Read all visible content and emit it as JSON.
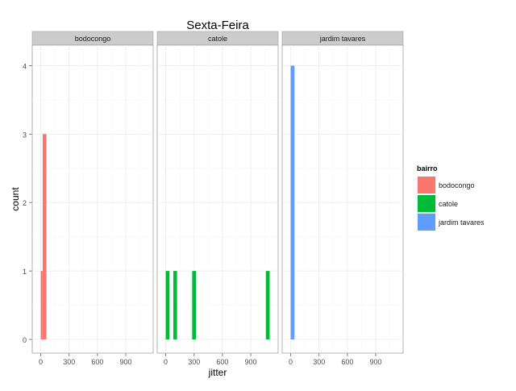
{
  "chart_data": {
    "type": "bar",
    "title": "Sexta-Feira",
    "xlabel": "jitter",
    "ylabel": "count",
    "xlim": [
      -90,
      1190
    ],
    "ylim": [
      -0.2,
      4.3
    ],
    "x_ticks": [
      "0",
      "300",
      "600",
      "900"
    ],
    "x_tick_values": [
      0,
      300,
      600,
      900
    ],
    "y_ticks": [
      "0",
      "1",
      "2",
      "3",
      "4"
    ],
    "y_tick_values": [
      0,
      1,
      2,
      3,
      4
    ],
    "bin_width": 40,
    "grid": true,
    "legend": {
      "title": "bairro",
      "position": "right",
      "entries": [
        "bodocongo",
        "catole",
        "jardim tavares"
      ]
    },
    "facets": [
      {
        "name": "bodocongo",
        "color": "#F8766D",
        "bars": [
          {
            "x_start": 0,
            "x_end": 20,
            "count": 1
          },
          {
            "x_start": 20,
            "x_end": 60,
            "count": 3
          }
        ]
      },
      {
        "name": "catole",
        "color": "#00BA38",
        "bars": [
          {
            "x_start": 0,
            "x_end": 40,
            "count": 1
          },
          {
            "x_start": 80,
            "x_end": 120,
            "count": 1
          },
          {
            "x_start": 280,
            "x_end": 320,
            "count": 1
          },
          {
            "x_start": 1060,
            "x_end": 1100,
            "count": 1
          }
        ]
      },
      {
        "name": "jardim tavares",
        "color": "#619CFF",
        "bars": [
          {
            "x_start": 0,
            "x_end": 40,
            "count": 4
          }
        ]
      }
    ]
  }
}
